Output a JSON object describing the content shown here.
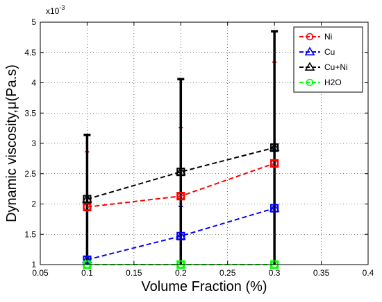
{
  "chart_data": {
    "type": "line",
    "title": "",
    "xlabel": "Volume Fraction (%)",
    "ylabel": "Dynamic viscosity,μ(Pa.s)",
    "y_multiplier": "x10",
    "y_multiplier_exp": "-3",
    "xlim": [
      0.05,
      0.4
    ],
    "ylim": [
      1,
      5
    ],
    "xticks": [
      "0.05",
      "0.1",
      "0.15",
      "0.2",
      "0.25",
      "0.3",
      "0.35",
      "0.4"
    ],
    "yticks": [
      "1",
      "1.5",
      "2",
      "2.5",
      "3",
      "3.5",
      "4",
      "4.5",
      "5"
    ],
    "grid": true,
    "legend_position": "top-right",
    "x": [
      0.1,
      0.2,
      0.3
    ],
    "series": [
      {
        "name": "Ni",
        "color": "#ff0000",
        "marker": "circle",
        "values": [
          1.95,
          2.13,
          2.67
        ],
        "err_upper": [
          2.86,
          3.26,
          4.34
        ],
        "err_lower": [
          1.04,
          1.0,
          1.0
        ]
      },
      {
        "name": "Cu",
        "color": "#0000ff",
        "marker": "triangle",
        "values": [
          1.08,
          1.47,
          1.93
        ],
        "err_upper": [
          1.12,
          1.96,
          2.9
        ],
        "err_lower": [
          1.04,
          1.0,
          1.0
        ]
      },
      {
        "name": "Cu+Ni",
        "color": "#000000",
        "marker": "triangle",
        "values": [
          2.08,
          2.53,
          2.93
        ],
        "err_upper": [
          3.14,
          4.06,
          4.85
        ],
        "err_lower": [
          1.0,
          1.0,
          1.0
        ]
      },
      {
        "name": "H2O",
        "color": "#00ff00",
        "marker": "circle",
        "values": [
          1.0,
          1.0,
          1.0
        ],
        "err_upper": [
          1.0,
          1.0,
          1.0
        ],
        "err_lower": [
          1.0,
          1.0,
          1.0
        ]
      }
    ]
  }
}
